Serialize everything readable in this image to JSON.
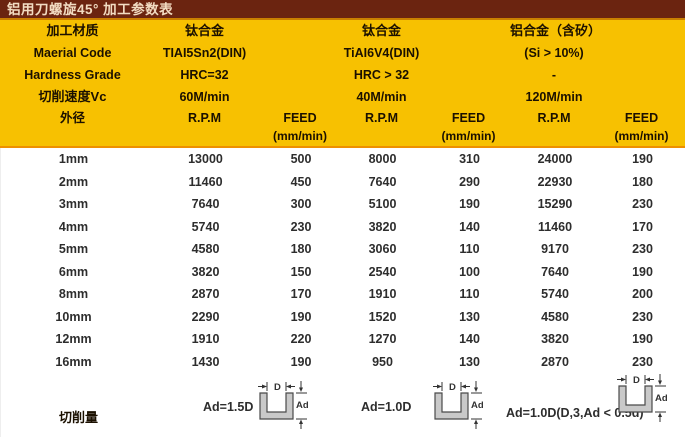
{
  "title": "铝用刀螺旋45° 加工参数表",
  "colors": {
    "title_bar": "#6B2410",
    "header_bg": "#F7C101",
    "divider_orange": "#EE9000",
    "title_text": "#F2DCC2"
  },
  "spec": {
    "row_labels": [
      "加工材质",
      "Maerial Code",
      "Hardness Grade",
      "切削速度Vc"
    ],
    "material_names": [
      "钛合金",
      "钛合金",
      "铝合金（含矽）"
    ],
    "codes": [
      "TIAI5Sn2(DIN)",
      "TiAI6V4(DIN)",
      "(Si > 10%)"
    ],
    "hardness": [
      "HRC=32",
      "HRC > 32",
      "-"
    ],
    "speeds": [
      "60M/min",
      "40M/min",
      "120M/min"
    ]
  },
  "columns": {
    "diameter": "外径",
    "rpm": "R.P.M",
    "feed": "FEED",
    "feed_unit": "(mm/min)"
  },
  "rows": [
    [
      "1mm",
      "13000",
      "500",
      "8000",
      "310",
      "24000",
      "190"
    ],
    [
      "2mm",
      "11460",
      "450",
      "7640",
      "290",
      "22930",
      "180"
    ],
    [
      "3mm",
      "7640",
      "300",
      "5100",
      "190",
      "15290",
      "230"
    ],
    [
      "4mm",
      "5740",
      "230",
      "3820",
      "140",
      "11460",
      "170"
    ],
    [
      "5mm",
      "4580",
      "180",
      "3060",
      "110",
      "9170",
      "230"
    ],
    [
      "6mm",
      "3820",
      "150",
      "2540",
      "100",
      "7640",
      "190"
    ],
    [
      "8mm",
      "2870",
      "170",
      "1910",
      "110",
      "5740",
      "200"
    ],
    [
      "10mm",
      "2290",
      "190",
      "1520",
      "130",
      "4580",
      "230"
    ],
    [
      "12mm",
      "1910",
      "220",
      "1270",
      "140",
      "3820",
      "190"
    ],
    [
      "16mm",
      "1430",
      "190",
      "950",
      "130",
      "2870",
      "230"
    ]
  ],
  "footer": {
    "label": "切削量",
    "formulas": [
      "Ad=1.5D",
      "Ad=1.0D",
      "Ad=1.0D(D,3,Ad < 0.5d)"
    ],
    "diagram": {
      "d_label": "D",
      "ad_label": "Ad"
    }
  }
}
